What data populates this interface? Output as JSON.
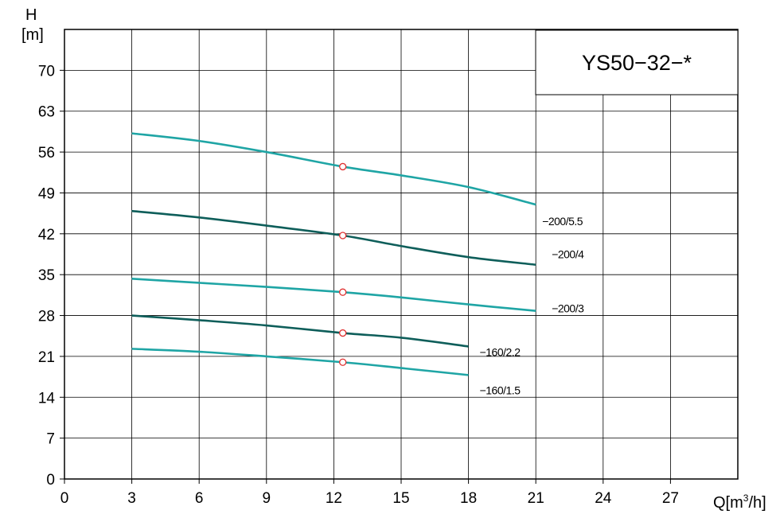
{
  "chart_data": {
    "type": "line",
    "title": "YS50−32−*",
    "xlabel_main": "Q[m",
    "xlabel_sup": "3",
    "xlabel_tail": "/h]",
    "ylabel_top": "H",
    "ylabel_unit": "[m]",
    "xlim": [
      0,
      30
    ],
    "ylim": [
      0,
      77
    ],
    "xticks": [
      0,
      3,
      6,
      9,
      12,
      15,
      18,
      21,
      24,
      27
    ],
    "yticks": [
      0,
      7,
      14,
      21,
      28,
      35,
      42,
      49,
      56,
      63,
      70
    ],
    "grid": true,
    "series": [
      {
        "name": "−200/5.5",
        "color": "#1fa5a5",
        "x": [
          3,
          6,
          9,
          12.4,
          15,
          18,
          21
        ],
        "y": [
          59.2,
          57.9,
          56.0,
          53.5,
          52.0,
          50.0,
          47.0
        ],
        "marker_x": 12.4,
        "marker_y": 53.5
      },
      {
        "name": "−200/4",
        "color": "#0e5e5a",
        "x": [
          3,
          6,
          9,
          12.4,
          15,
          18,
          21
        ],
        "y": [
          45.9,
          44.8,
          43.4,
          41.7,
          39.9,
          38.0,
          36.7
        ],
        "marker_x": 12.4,
        "marker_y": 41.7
      },
      {
        "name": "−200/3",
        "color": "#1fa5a5",
        "x": [
          3,
          6,
          9,
          12.4,
          15,
          18,
          21
        ],
        "y": [
          34.3,
          33.6,
          32.9,
          32.0,
          31.1,
          29.9,
          28.8
        ],
        "marker_x": 12.4,
        "marker_y": 32.0
      },
      {
        "name": "−160/2.2",
        "color": "#0e5e5a",
        "x": [
          3,
          6,
          9,
          12.4,
          15,
          18
        ],
        "y": [
          28.0,
          27.2,
          26.3,
          25.0,
          24.2,
          22.7
        ],
        "marker_x": 12.4,
        "marker_y": 25.0
      },
      {
        "name": "−160/1.5",
        "color": "#1fa5a5",
        "x": [
          3,
          6,
          9,
          12.4,
          15,
          18
        ],
        "y": [
          22.3,
          21.8,
          21.0,
          20.0,
          19.0,
          17.8
        ],
        "marker_x": 12.4,
        "marker_y": 20.0
      }
    ],
    "marker_color": "#e03030"
  }
}
